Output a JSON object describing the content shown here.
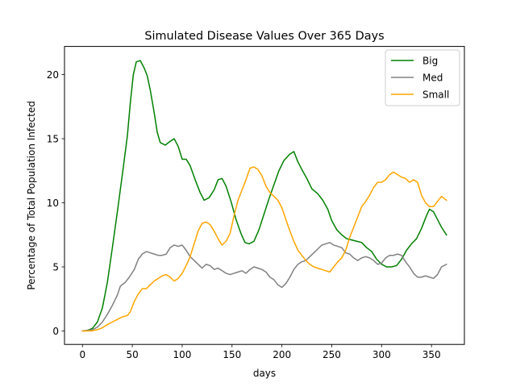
{
  "chart_data": {
    "type": "line",
    "title": "Simulated Disease Values Over 365 Days",
    "xlabel": "days",
    "ylabel": "Percentage of Total Population Infected",
    "xlim": [
      -18,
      383
    ],
    "ylim": [
      -1.05,
      22.2
    ],
    "xticks": [
      0,
      50,
      100,
      150,
      200,
      250,
      300,
      350
    ],
    "yticks": [
      0,
      5,
      10,
      15,
      20
    ],
    "grid": false,
    "legend": "top-right",
    "series": [
      {
        "name": "Big",
        "color": "#008000",
        "points": [
          [
            0,
            0
          ],
          [
            5,
            0.05
          ],
          [
            10,
            0.2
          ],
          [
            15,
            0.7
          ],
          [
            20,
            1.8
          ],
          [
            25,
            3.8
          ],
          [
            30,
            6.5
          ],
          [
            35,
            9.3
          ],
          [
            40,
            12.2
          ],
          [
            45,
            15.2
          ],
          [
            48,
            17.8
          ],
          [
            51,
            20.0
          ],
          [
            54,
            21.0
          ],
          [
            58,
            21.1
          ],
          [
            62,
            20.5
          ],
          [
            65,
            19.9
          ],
          [
            68,
            18.8
          ],
          [
            72,
            17.0
          ],
          [
            75,
            15.5
          ],
          [
            78,
            14.7
          ],
          [
            83,
            14.5
          ],
          [
            88,
            14.8
          ],
          [
            92,
            15.0
          ],
          [
            96,
            14.4
          ],
          [
            100,
            13.4
          ],
          [
            104,
            13.4
          ],
          [
            108,
            12.9
          ],
          [
            113,
            11.8
          ],
          [
            118,
            10.8
          ],
          [
            122,
            10.2
          ],
          [
            127,
            10.4
          ],
          [
            132,
            11.0
          ],
          [
            136,
            11.8
          ],
          [
            140,
            11.9
          ],
          [
            144,
            11.3
          ],
          [
            149,
            10.1
          ],
          [
            154,
            8.7
          ],
          [
            159,
            7.6
          ],
          [
            163,
            6.9
          ],
          [
            167,
            6.8
          ],
          [
            172,
            7.0
          ],
          [
            177,
            7.9
          ],
          [
            182,
            9.1
          ],
          [
            187,
            10.3
          ],
          [
            192,
            11.4
          ],
          [
            197,
            12.5
          ],
          [
            202,
            13.3
          ],
          [
            208,
            13.8
          ],
          [
            212,
            14.0
          ],
          [
            216,
            13.2
          ],
          [
            220,
            12.6
          ],
          [
            225,
            11.9
          ],
          [
            230,
            11.1
          ],
          [
            236,
            10.7
          ],
          [
            241,
            10.2
          ],
          [
            246,
            9.5
          ],
          [
            250,
            8.6
          ],
          [
            255,
            7.9
          ],
          [
            260,
            7.5
          ],
          [
            265,
            7.2
          ],
          [
            270,
            7.1
          ],
          [
            275,
            7.0
          ],
          [
            280,
            6.9
          ],
          [
            285,
            6.5
          ],
          [
            290,
            6.2
          ],
          [
            295,
            5.6
          ],
          [
            300,
            5.2
          ],
          [
            305,
            5.0
          ],
          [
            310,
            5.0
          ],
          [
            315,
            5.1
          ],
          [
            320,
            5.6
          ],
          [
            325,
            6.3
          ],
          [
            330,
            6.8
          ],
          [
            335,
            7.2
          ],
          [
            340,
            8.0
          ],
          [
            345,
            9.0
          ],
          [
            348,
            9.5
          ],
          [
            352,
            9.3
          ],
          [
            356,
            8.7
          ],
          [
            360,
            8.1
          ],
          [
            365,
            7.5
          ]
        ]
      },
      {
        "name": "Med",
        "color": "#808080",
        "points": [
          [
            0,
            0
          ],
          [
            5,
            0.05
          ],
          [
            10,
            0.1
          ],
          [
            15,
            0.3
          ],
          [
            20,
            0.7
          ],
          [
            25,
            1.3
          ],
          [
            30,
            2.0
          ],
          [
            35,
            2.8
          ],
          [
            38,
            3.5
          ],
          [
            43,
            3.8
          ],
          [
            47,
            4.2
          ],
          [
            52,
            4.8
          ],
          [
            56,
            5.6
          ],
          [
            60,
            6.0
          ],
          [
            64,
            6.2
          ],
          [
            68,
            6.1
          ],
          [
            72,
            6.0
          ],
          [
            76,
            5.9
          ],
          [
            80,
            5.9
          ],
          [
            84,
            6.0
          ],
          [
            88,
            6.5
          ],
          [
            92,
            6.7
          ],
          [
            96,
            6.6
          ],
          [
            100,
            6.7
          ],
          [
            104,
            6.3
          ],
          [
            108,
            5.8
          ],
          [
            112,
            5.5
          ],
          [
            116,
            5.2
          ],
          [
            120,
            4.9
          ],
          [
            124,
            5.2
          ],
          [
            128,
            5.1
          ],
          [
            132,
            4.8
          ],
          [
            136,
            4.9
          ],
          [
            140,
            4.7
          ],
          [
            144,
            4.5
          ],
          [
            148,
            4.4
          ],
          [
            152,
            4.5
          ],
          [
            156,
            4.6
          ],
          [
            160,
            4.7
          ],
          [
            164,
            4.5
          ],
          [
            168,
            4.8
          ],
          [
            172,
            5.0
          ],
          [
            176,
            4.9
          ],
          [
            180,
            4.8
          ],
          [
            184,
            4.6
          ],
          [
            188,
            4.2
          ],
          [
            192,
            4.0
          ],
          [
            196,
            3.6
          ],
          [
            200,
            3.4
          ],
          [
            204,
            3.7
          ],
          [
            208,
            4.2
          ],
          [
            212,
            4.8
          ],
          [
            216,
            5.2
          ],
          [
            220,
            5.4
          ],
          [
            224,
            5.5
          ],
          [
            228,
            5.8
          ],
          [
            232,
            6.1
          ],
          [
            236,
            6.4
          ],
          [
            240,
            6.7
          ],
          [
            244,
            6.8
          ],
          [
            248,
            6.9
          ],
          [
            252,
            6.7
          ],
          [
            256,
            6.6
          ],
          [
            260,
            6.5
          ],
          [
            264,
            6.1
          ],
          [
            268,
            6.0
          ],
          [
            272,
            5.7
          ],
          [
            276,
            5.5
          ],
          [
            280,
            5.7
          ],
          [
            284,
            5.8
          ],
          [
            288,
            5.7
          ],
          [
            292,
            5.5
          ],
          [
            296,
            5.2
          ],
          [
            300,
            5.3
          ],
          [
            304,
            5.7
          ],
          [
            308,
            5.9
          ],
          [
            312,
            5.9
          ],
          [
            316,
            6.0
          ],
          [
            320,
            5.9
          ],
          [
            324,
            5.4
          ],
          [
            328,
            5.0
          ],
          [
            332,
            4.5
          ],
          [
            336,
            4.2
          ],
          [
            340,
            4.2
          ],
          [
            344,
            4.3
          ],
          [
            348,
            4.2
          ],
          [
            352,
            4.1
          ],
          [
            356,
            4.4
          ],
          [
            360,
            5.0
          ],
          [
            365,
            5.2
          ]
        ]
      },
      {
        "name": "Small",
        "color": "#FFA500",
        "points": [
          [
            0,
            0
          ],
          [
            5,
            0
          ],
          [
            10,
            0.02
          ],
          [
            15,
            0.1
          ],
          [
            20,
            0.25
          ],
          [
            25,
            0.5
          ],
          [
            30,
            0.7
          ],
          [
            35,
            0.9
          ],
          [
            40,
            1.1
          ],
          [
            45,
            1.2
          ],
          [
            48,
            1.5
          ],
          [
            52,
            2.3
          ],
          [
            56,
            2.9
          ],
          [
            60,
            3.3
          ],
          [
            64,
            3.3
          ],
          [
            68,
            3.6
          ],
          [
            72,
            3.9
          ],
          [
            76,
            4.1
          ],
          [
            80,
            4.3
          ],
          [
            84,
            4.4
          ],
          [
            88,
            4.2
          ],
          [
            92,
            3.9
          ],
          [
            96,
            4.1
          ],
          [
            100,
            4.5
          ],
          [
            104,
            5.1
          ],
          [
            108,
            5.8
          ],
          [
            112,
            6.8
          ],
          [
            116,
            7.8
          ],
          [
            120,
            8.4
          ],
          [
            124,
            8.5
          ],
          [
            128,
            8.3
          ],
          [
            132,
            7.8
          ],
          [
            136,
            7.2
          ],
          [
            140,
            6.7
          ],
          [
            144,
            7.0
          ],
          [
            148,
            7.6
          ],
          [
            152,
            9.0
          ],
          [
            156,
            10.2
          ],
          [
            160,
            11.0
          ],
          [
            164,
            11.8
          ],
          [
            168,
            12.7
          ],
          [
            172,
            12.8
          ],
          [
            176,
            12.6
          ],
          [
            180,
            12.1
          ],
          [
            184,
            11.3
          ],
          [
            188,
            10.8
          ],
          [
            192,
            10.5
          ],
          [
            196,
            10.2
          ],
          [
            200,
            9.6
          ],
          [
            204,
            8.7
          ],
          [
            208,
            7.8
          ],
          [
            212,
            7.0
          ],
          [
            216,
            6.3
          ],
          [
            220,
            5.9
          ],
          [
            224,
            5.5
          ],
          [
            228,
            5.2
          ],
          [
            232,
            5.0
          ],
          [
            236,
            4.9
          ],
          [
            240,
            4.8
          ],
          [
            244,
            4.7
          ],
          [
            248,
            4.6
          ],
          [
            252,
            5.0
          ],
          [
            256,
            5.4
          ],
          [
            260,
            5.7
          ],
          [
            264,
            6.3
          ],
          [
            268,
            7.3
          ],
          [
            272,
            8.1
          ],
          [
            276,
            8.9
          ],
          [
            280,
            9.7
          ],
          [
            284,
            10.1
          ],
          [
            288,
            10.6
          ],
          [
            292,
            11.2
          ],
          [
            296,
            11.6
          ],
          [
            300,
            11.6
          ],
          [
            304,
            11.8
          ],
          [
            308,
            12.2
          ],
          [
            312,
            12.4
          ],
          [
            316,
            12.2
          ],
          [
            320,
            12.0
          ],
          [
            324,
            11.9
          ],
          [
            328,
            11.6
          ],
          [
            332,
            11.8
          ],
          [
            336,
            11.6
          ],
          [
            340,
            10.6
          ],
          [
            344,
            10.0
          ],
          [
            348,
            9.7
          ],
          [
            352,
            9.7
          ],
          [
            356,
            10.1
          ],
          [
            360,
            10.5
          ],
          [
            365,
            10.2
          ]
        ]
      }
    ]
  }
}
